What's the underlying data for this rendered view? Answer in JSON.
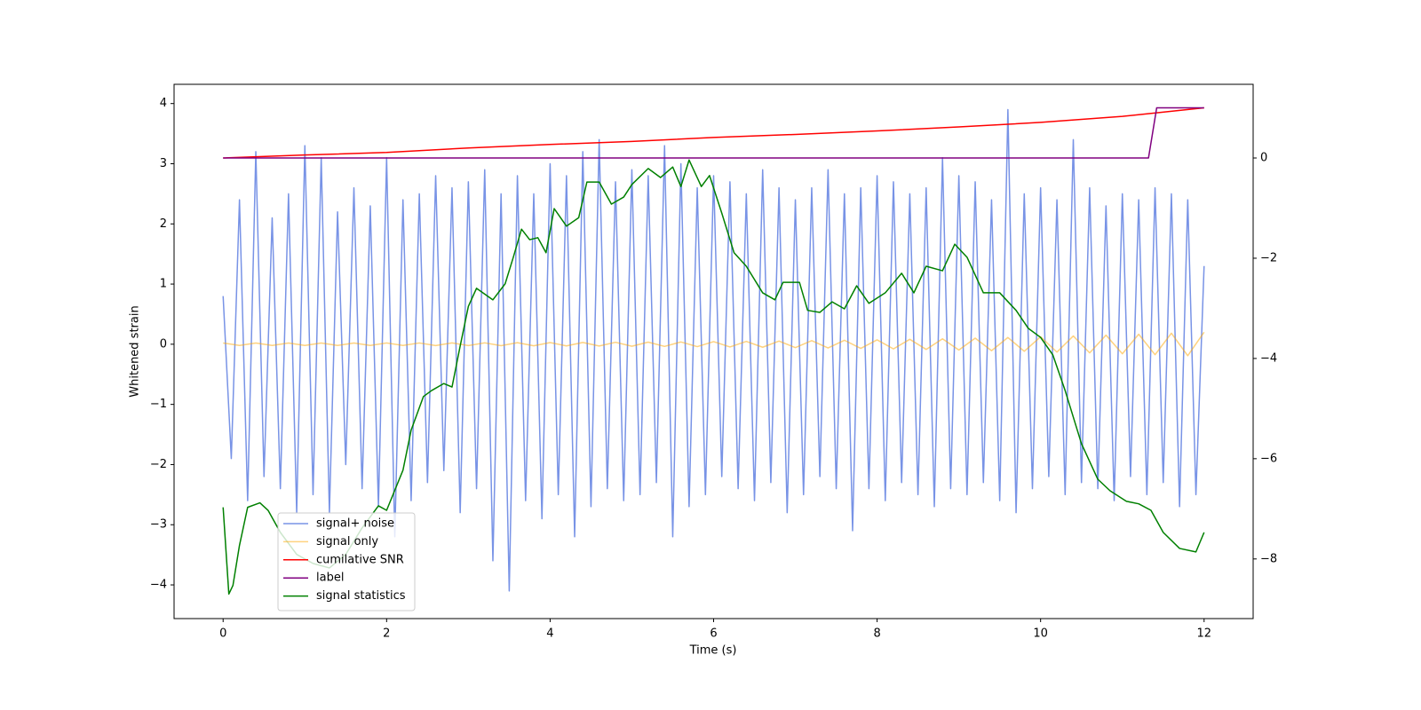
{
  "chart_data": {
    "type": "line",
    "xlabel": "Time (s)",
    "ylabel": "Whitened strain",
    "xlim": [
      -0.6,
      12.6
    ],
    "xticks": [
      0,
      2,
      4,
      6,
      8,
      10,
      12
    ],
    "ylim": [
      -4.56,
      4.32
    ],
    "yticks": [
      {
        "value": -4,
        "label": "−4"
      },
      {
        "value": -3,
        "label": "−3"
      },
      {
        "value": -2,
        "label": "−2"
      },
      {
        "value": -1,
        "label": "−1"
      },
      0,
      1,
      2,
      3,
      4
    ],
    "y2lim": [
      -9.19,
      1.47
    ],
    "y2ticks": [
      {
        "value": -8,
        "label": "−8"
      },
      {
        "value": -6,
        "label": "−6"
      },
      {
        "value": -4,
        "label": "−4"
      },
      {
        "value": -2,
        "label": "−2"
      },
      0
    ],
    "legend": "lower left",
    "series": [
      {
        "name": "signal+ noise",
        "color": "#7893e6",
        "alpha": 1,
        "x": [
          0,
          0.1,
          0.2,
          0.3,
          0.4,
          0.5,
          0.6,
          0.7,
          0.8,
          0.9,
          1,
          1.1,
          1.2,
          1.3,
          1.4,
          1.5,
          1.6,
          1.7,
          1.8,
          1.9,
          2,
          2.1,
          2.2,
          2.3,
          2.4,
          2.5,
          2.6,
          2.7,
          2.8,
          2.9,
          3,
          3.1,
          3.2,
          3.3,
          3.4,
          3.5,
          3.6,
          3.7,
          3.8,
          3.9,
          4,
          4.1,
          4.2,
          4.3,
          4.4,
          4.5,
          4.6,
          4.7,
          4.8,
          4.9,
          5,
          5.1,
          5.2,
          5.3,
          5.4,
          5.5,
          5.6,
          5.7,
          5.8,
          5.9,
          6,
          6.1,
          6.2,
          6.3,
          6.4,
          6.5,
          6.6,
          6.7,
          6.8,
          6.9,
          7,
          7.1,
          7.2,
          7.3,
          7.4,
          7.5,
          7.6,
          7.7,
          7.8,
          7.9,
          8,
          8.1,
          8.2,
          8.3,
          8.4,
          8.5,
          8.6,
          8.7,
          8.8,
          8.9,
          9,
          9.1,
          9.2,
          9.3,
          9.4,
          9.5,
          9.6,
          9.7,
          9.8,
          9.9,
          10,
          10.1,
          10.2,
          10.3,
          10.4,
          10.5,
          10.6,
          10.7,
          10.8,
          10.9,
          11,
          11.1,
          11.2,
          11.3,
          11.4,
          11.5,
          11.6,
          11.7,
          11.8,
          11.9,
          12
        ],
        "values": [
          0.8,
          -1.9,
          2.4,
          -2.6,
          3.2,
          -2.2,
          2.1,
          -2.4,
          2.5,
          -2.8,
          3.3,
          -2.5,
          3.1,
          -2.8,
          2.2,
          -2.0,
          2.6,
          -2.4,
          2.3,
          -2.7,
          3.1,
          -3.2,
          2.4,
          -2.6,
          2.5,
          -2.3,
          2.8,
          -2.1,
          2.6,
          -2.8,
          2.7,
          -2.4,
          2.9,
          -3.6,
          2.5,
          -4.1,
          2.8,
          -2.6,
          2.5,
          -2.9,
          3.0,
          -2.5,
          2.8,
          -3.2,
          3.2,
          -2.7,
          3.4,
          -2.4,
          2.7,
          -2.6,
          2.9,
          -2.5,
          2.8,
          -2.3,
          3.3,
          -3.2,
          3.0,
          -2.7,
          2.6,
          -2.5,
          2.8,
          -2.2,
          2.7,
          -2.4,
          2.5,
          -2.6,
          2.9,
          -2.3,
          2.6,
          -2.8,
          2.4,
          -2.5,
          2.6,
          -2.2,
          2.9,
          -2.4,
          2.5,
          -3.1,
          2.6,
          -2.4,
          2.8,
          -2.6,
          2.7,
          -2.3,
          2.5,
          -2.5,
          2.6,
          -2.7,
          3.1,
          -2.4,
          2.8,
          -2.5,
          2.7,
          -2.3,
          2.4,
          -2.6,
          3.9,
          -2.8,
          2.5,
          -2.4,
          2.6,
          -2.2,
          2.4,
          -2.5,
          3.4,
          -2.3,
          2.6,
          -2.4,
          2.3,
          -2.6,
          2.5,
          -2.2,
          2.4,
          -2.5,
          2.6,
          -2.3,
          2.5,
          -2.7,
          2.4,
          -2.5,
          1.3
        ]
      },
      {
        "name": "signal only",
        "color": "#ffa500",
        "alpha": 0.5,
        "x": [
          0,
          0.2,
          0.4,
          0.6,
          0.8,
          1,
          1.2,
          1.4,
          1.6,
          1.8,
          2,
          2.2,
          2.4,
          2.6,
          2.8,
          3,
          3.2,
          3.4,
          3.6,
          3.8,
          4,
          4.2,
          4.4,
          4.6,
          4.8,
          5,
          5.2,
          5.4,
          5.6,
          5.8,
          6,
          6.2,
          6.4,
          6.6,
          6.8,
          7,
          7.2,
          7.4,
          7.6,
          7.8,
          8,
          8.2,
          8.4,
          8.6,
          8.8,
          9,
          9.2,
          9.4,
          9.6,
          9.8,
          10,
          10.2,
          10.4,
          10.6,
          10.8,
          11,
          11.2,
          11.4,
          11.6,
          11.8,
          12
        ],
        "values": [
          0.02,
          -0.02,
          0.02,
          -0.02,
          0.02,
          -0.02,
          0.02,
          -0.02,
          0.02,
          -0.02,
          0.021,
          -0.021,
          0.021,
          -0.022,
          0.022,
          -0.023,
          0.023,
          -0.024,
          0.025,
          -0.026,
          0.027,
          -0.028,
          0.029,
          -0.03,
          0.032,
          -0.033,
          0.035,
          -0.036,
          0.038,
          -0.04,
          0.043,
          -0.045,
          0.047,
          -0.05,
          0.053,
          -0.056,
          0.059,
          -0.062,
          0.066,
          -0.069,
          0.073,
          -0.078,
          0.082,
          -0.086,
          0.091,
          -0.096,
          0.101,
          -0.107,
          0.112,
          -0.118,
          0.124,
          -0.131,
          0.137,
          -0.144,
          0.151,
          -0.159,
          0.166,
          -0.174,
          0.183,
          -0.191,
          0.2
        ]
      },
      {
        "name": "cumilative SNR",
        "color": "#ff0000",
        "alpha": 1,
        "axis": "y2",
        "x": [
          0,
          1,
          2,
          3,
          4,
          5,
          6,
          7,
          8,
          9,
          10,
          11,
          12
        ],
        "values": [
          0,
          0.06,
          0.11,
          0.2,
          0.27,
          0.33,
          0.41,
          0.47,
          0.54,
          0.62,
          0.71,
          0.83,
          1.0
        ]
      },
      {
        "name": "label",
        "color": "#800080",
        "alpha": 1,
        "axis": "y2",
        "x": [
          0,
          11.32,
          11.42,
          12
        ],
        "values": [
          0,
          0,
          1,
          1
        ]
      },
      {
        "name": "signal statistics",
        "color": "#008000",
        "alpha": 1,
        "axis": "y2",
        "x": [
          0,
          0.07,
          0.12,
          0.2,
          0.3,
          0.45,
          0.55,
          0.7,
          0.9,
          1.1,
          1.3,
          1.5,
          1.7,
          1.9,
          2.0,
          2.2,
          2.3,
          2.45,
          2.55,
          2.7,
          2.8,
          2.9,
          3.0,
          3.1,
          3.3,
          3.45,
          3.55,
          3.65,
          3.75,
          3.85,
          3.95,
          4.05,
          4.2,
          4.35,
          4.45,
          4.6,
          4.75,
          4.9,
          5.0,
          5.2,
          5.35,
          5.5,
          5.6,
          5.7,
          5.85,
          5.95,
          6.1,
          6.25,
          6.4,
          6.6,
          6.75,
          6.85,
          7.05,
          7.15,
          7.3,
          7.45,
          7.6,
          7.75,
          7.9,
          8.1,
          8.3,
          8.45,
          8.6,
          8.8,
          8.95,
          9.1,
          9.3,
          9.5,
          9.7,
          9.85,
          10.0,
          10.15,
          10.3,
          10.5,
          10.7,
          10.85,
          11.05,
          11.2,
          11.35,
          11.5,
          11.7,
          11.9,
          12.0
        ],
        "values": [
          -6.97,
          -8.7,
          -8.53,
          -7.73,
          -6.97,
          -6.88,
          -7.03,
          -7.47,
          -7.91,
          -8.09,
          -8.18,
          -7.91,
          -7.38,
          -6.94,
          -7.03,
          -6.23,
          -5.43,
          -4.76,
          -4.64,
          -4.5,
          -4.57,
          -3.75,
          -2.96,
          -2.6,
          -2.83,
          -2.51,
          -1.98,
          -1.42,
          -1.63,
          -1.59,
          -1.89,
          -1.01,
          -1.36,
          -1.19,
          -0.48,
          -0.48,
          -0.92,
          -0.78,
          -0.53,
          -0.21,
          -0.39,
          -0.18,
          -0.57,
          -0.04,
          -0.57,
          -0.35,
          -1.1,
          -1.89,
          -2.16,
          -2.69,
          -2.83,
          -2.48,
          -2.48,
          -3.04,
          -3.08,
          -2.87,
          -3.01,
          -2.55,
          -2.9,
          -2.69,
          -2.3,
          -2.69,
          -2.16,
          -2.25,
          -1.72,
          -1.98,
          -2.69,
          -2.69,
          -3.04,
          -3.4,
          -3.58,
          -3.93,
          -4.64,
          -5.7,
          -6.41,
          -6.64,
          -6.85,
          -6.9,
          -7.03,
          -7.47,
          -7.79,
          -7.86,
          -7.47
        ]
      }
    ]
  }
}
